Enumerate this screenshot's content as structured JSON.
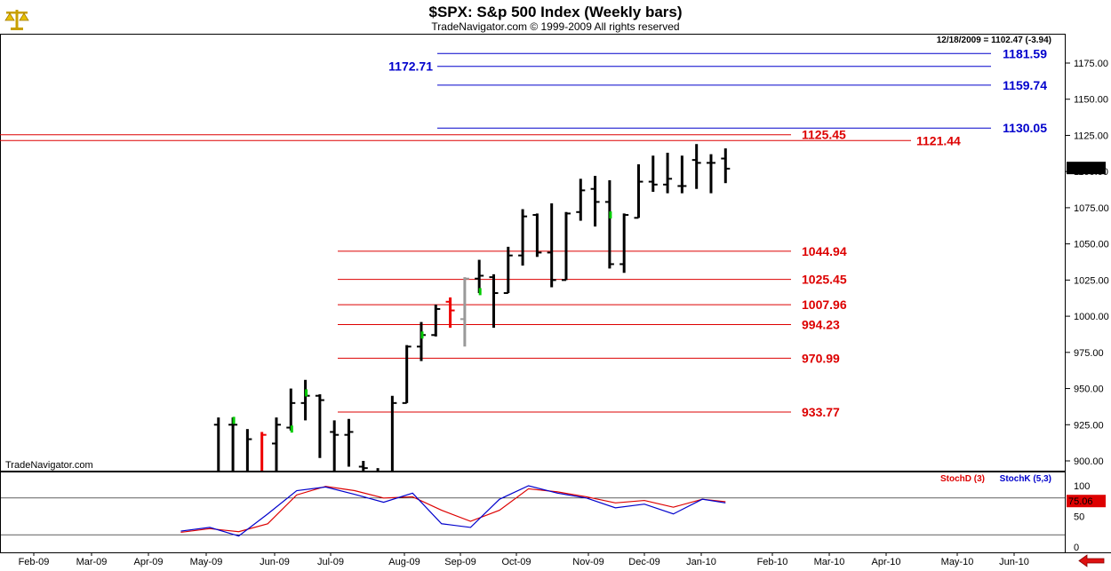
{
  "header": {
    "title": "$SPX:  S&p 500 Index  (Weekly bars)",
    "subtitle": "TradeNavigator.com © 1999-2009 All rights reserved",
    "last_info": "12/18/2009 = 1102.47 (-3.94)",
    "watermark": "TradeNavigator.com"
  },
  "icons": {
    "logo": "scales-logo-icon",
    "back": "left-arrow-icon"
  },
  "colors": {
    "bars": "#000000",
    "blue_levels": "#0000cc",
    "red_levels": "#dd0000",
    "stochD": "#dd0000",
    "stochK": "#0000cc",
    "up_tick": "#00cc00",
    "red_bar": "#ee0000",
    "grey_bar": "#999999"
  },
  "chart_data": [
    {
      "type": "ohlc",
      "title": "$SPX:  S&p 500 Index  (Weekly bars)",
      "ylim": [
        880,
        1195
      ],
      "yticks": [
        "1175.00",
        "1150.00",
        "1125.00",
        "1100.00",
        "1075.00",
        "1050.00",
        "1025.00",
        "1000.00",
        "975.00",
        "950.00",
        "925.00",
        "900.00"
      ],
      "last_price": "1102.47",
      "xticks": [
        "Feb-09",
        "Mar-09",
        "Apr-09",
        "May-09",
        "Jun-09",
        "Jul-09",
        "Aug-09",
        "Sep-09",
        "Oct-09",
        "Nov-09",
        "Dec-09",
        "Jan-10",
        "Feb-10",
        "Mar-10",
        "Apr-10",
        "May-10",
        "Jun-10"
      ],
      "bars": [
        {
          "week": 0.6,
          "open": 925,
          "high": 930,
          "low": 880,
          "close": 880
        },
        {
          "week": 1.6,
          "open": 925,
          "high": 930,
          "low": 880,
          "close": 925
        },
        {
          "week": 2.6,
          "open": 880,
          "high": 922,
          "low": 880,
          "close": 915
        },
        {
          "week": 3.6,
          "open": 880,
          "high": 920,
          "low": 880,
          "close": 918
        },
        {
          "week": 4.6,
          "open": 912,
          "high": 930,
          "low": 880,
          "close": 925
        },
        {
          "week": 5.6,
          "open": 923,
          "high": 950,
          "low": 921,
          "close": 940
        },
        {
          "week": 6.6,
          "open": 940,
          "high": 956,
          "low": 928,
          "close": 945
        },
        {
          "week": 7.6,
          "open": 945,
          "high": 946,
          "low": 902,
          "close": 942
        },
        {
          "week": 8.6,
          "open": 920,
          "high": 928,
          "low": 888,
          "close": 918
        },
        {
          "week": 9.6,
          "open": 918,
          "high": 929,
          "low": 896,
          "close": 920
        },
        {
          "week": 10.6,
          "open": 896,
          "high": 900,
          "low": 880,
          "close": 895
        },
        {
          "week": 11.6,
          "open": 880,
          "high": 895,
          "low": 880,
          "close": 893
        },
        {
          "week": 12.6,
          "open": 890,
          "high": 945,
          "low": 880,
          "close": 940
        },
        {
          "week": 13.6,
          "open": 940,
          "high": 980,
          "low": 940,
          "close": 979
        },
        {
          "week": 14.6,
          "open": 979,
          "high": 996,
          "low": 969,
          "close": 987
        },
        {
          "week": 15.6,
          "open": 987,
          "high": 1008,
          "low": 986,
          "close": 1005
        },
        {
          "week": 16.6,
          "open": 1010,
          "high": 1013,
          "low": 992,
          "close": 1004
        },
        {
          "week": 17.6,
          "open": 998,
          "high": 1027,
          "low": 979,
          "close": 1026
        },
        {
          "week": 18.6,
          "open": 1026,
          "high": 1039,
          "low": 1016,
          "close": 1028
        },
        {
          "week": 19.6,
          "open": 1027,
          "high": 1029,
          "low": 992,
          "close": 1016
        },
        {
          "week": 20.6,
          "open": 1016,
          "high": 1048,
          "low": 1016,
          "close": 1042
        },
        {
          "week": 21.6,
          "open": 1042,
          "high": 1074,
          "low": 1035,
          "close": 1069
        },
        {
          "week": 22.6,
          "open": 1070,
          "high": 1071,
          "low": 1041,
          "close": 1044
        },
        {
          "week": 23.6,
          "open": 1044,
          "high": 1078,
          "low": 1020,
          "close": 1025
        },
        {
          "week": 24.6,
          "open": 1025,
          "high": 1072,
          "low": 1025,
          "close": 1071
        },
        {
          "week": 25.6,
          "open": 1072,
          "high": 1095,
          "low": 1066,
          "close": 1087
        },
        {
          "week": 26.6,
          "open": 1088,
          "high": 1097,
          "low": 1062,
          "close": 1079
        },
        {
          "week": 27.6,
          "open": 1079,
          "high": 1094,
          "low": 1033,
          "close": 1036
        },
        {
          "week": 28.6,
          "open": 1036,
          "high": 1071,
          "low": 1030,
          "close": 1070
        },
        {
          "week": 29.6,
          "open": 1068,
          "high": 1105,
          "low": 1068,
          "close": 1093
        },
        {
          "week": 30.6,
          "open": 1093,
          "high": 1111,
          "low": 1086,
          "close": 1091
        },
        {
          "week": 31.6,
          "open": 1091,
          "high": 1113,
          "low": 1085,
          "close": 1095
        },
        {
          "week": 32.6,
          "open": 1090,
          "high": 1111,
          "low": 1085,
          "close": 1090
        },
        {
          "week": 33.6,
          "open": 1108,
          "high": 1119,
          "low": 1088,
          "close": 1106
        },
        {
          "week": 34.6,
          "open": 1106,
          "high": 1112,
          "low": 1085,
          "close": 1106
        },
        {
          "week": 35.6,
          "open": 1109,
          "high": 1116,
          "low": 1092,
          "close": 1102
        }
      ],
      "levels_blue": [
        {
          "label": "1181.59",
          "value": 1181.59,
          "side": "right"
        },
        {
          "label": "1172.71",
          "value": 1172.71,
          "side": "left"
        },
        {
          "label": "1159.74",
          "value": 1159.74,
          "side": "right"
        },
        {
          "label": "1130.05",
          "value": 1130.05,
          "side": "right"
        }
      ],
      "levels_red": [
        {
          "label": "1125.45",
          "value": 1125.45,
          "span": "left"
        },
        {
          "label": "1121.44",
          "value": 1121.44,
          "span": "full"
        },
        {
          "label": "1044.94",
          "value": 1044.94
        },
        {
          "label": "1025.45",
          "value": 1025.45
        },
        {
          "label": "1007.96",
          "value": 1007.96
        },
        {
          "label": "994.23",
          "value": 994.23
        },
        {
          "label": "970.99",
          "value": 970.99
        },
        {
          "label": "933.77",
          "value": 933.77
        }
      ]
    },
    {
      "type": "line",
      "legend": [
        "StochD (3)",
        "StochK (5,3)"
      ],
      "ylim": [
        0,
        100
      ],
      "yticks": [
        "100",
        "50",
        "0"
      ],
      "levels": [
        80,
        20
      ],
      "last_value": "75.06",
      "x": [
        -2,
        0,
        2,
        4,
        6,
        8,
        10,
        12,
        14,
        16,
        18,
        20,
        22,
        24,
        26,
        28,
        30,
        32,
        34,
        35.6
      ],
      "series": [
        {
          "name": "StochD (3)",
          "values": [
            24,
            30,
            25,
            38,
            85,
            99,
            92,
            80,
            82,
            60,
            42,
            60,
            95,
            90,
            82,
            72,
            76,
            65,
            78,
            74
          ]
        },
        {
          "name": "StochK (5,3)",
          "values": [
            26,
            32,
            18,
            54,
            92,
            98,
            86,
            73,
            88,
            38,
            32,
            78,
            100,
            88,
            80,
            64,
            70,
            54,
            78,
            72
          ]
        }
      ]
    }
  ]
}
